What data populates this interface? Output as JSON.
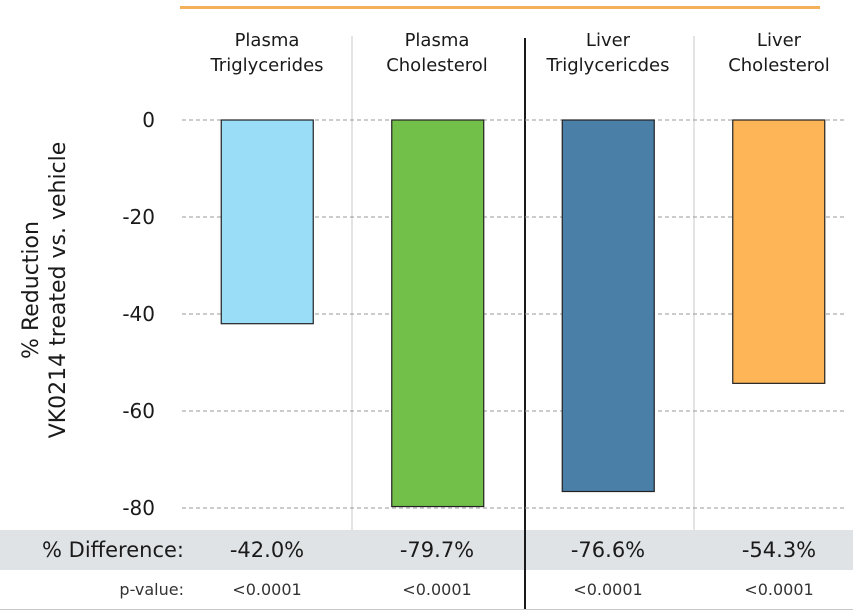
{
  "chart_data": {
    "type": "bar",
    "categories": [
      {
        "line1": "Plasma",
        "line2": "Triglycerides"
      },
      {
        "line1": "Plasma",
        "line2": "Cholesterol"
      },
      {
        "line1": "Liver",
        "line2": "Triglycericdes"
      },
      {
        "line1": "Liver",
        "line2": "Cholesterol"
      }
    ],
    "values": [
      -42.0,
      -79.7,
      -76.6,
      -54.3
    ],
    "colors": [
      "#99ddf6",
      "#72c04a",
      "#4a7fa8",
      "#fdb557"
    ],
    "ylabel_line1": "% Reduction",
    "ylabel_line2": "VK0214 treated vs. vehicle",
    "ylim": [
      -80,
      0
    ],
    "yticks": [
      "0",
      "-20",
      "-40",
      "-60",
      "-80"
    ],
    "ytick_values": [
      0,
      -20,
      -40,
      -60,
      -80
    ],
    "grid": "horizontal dashed"
  },
  "table": {
    "diff_label": "% Difference:",
    "diff_values": [
      "-42.0%",
      "-79.7%",
      "-76.6%",
      "-54.3%"
    ],
    "p_label": "p-value:",
    "p_values": [
      "<0.0001",
      "<0.0001",
      "<0.0001",
      "<0.0001"
    ]
  },
  "accent_color": "#f5b15a"
}
